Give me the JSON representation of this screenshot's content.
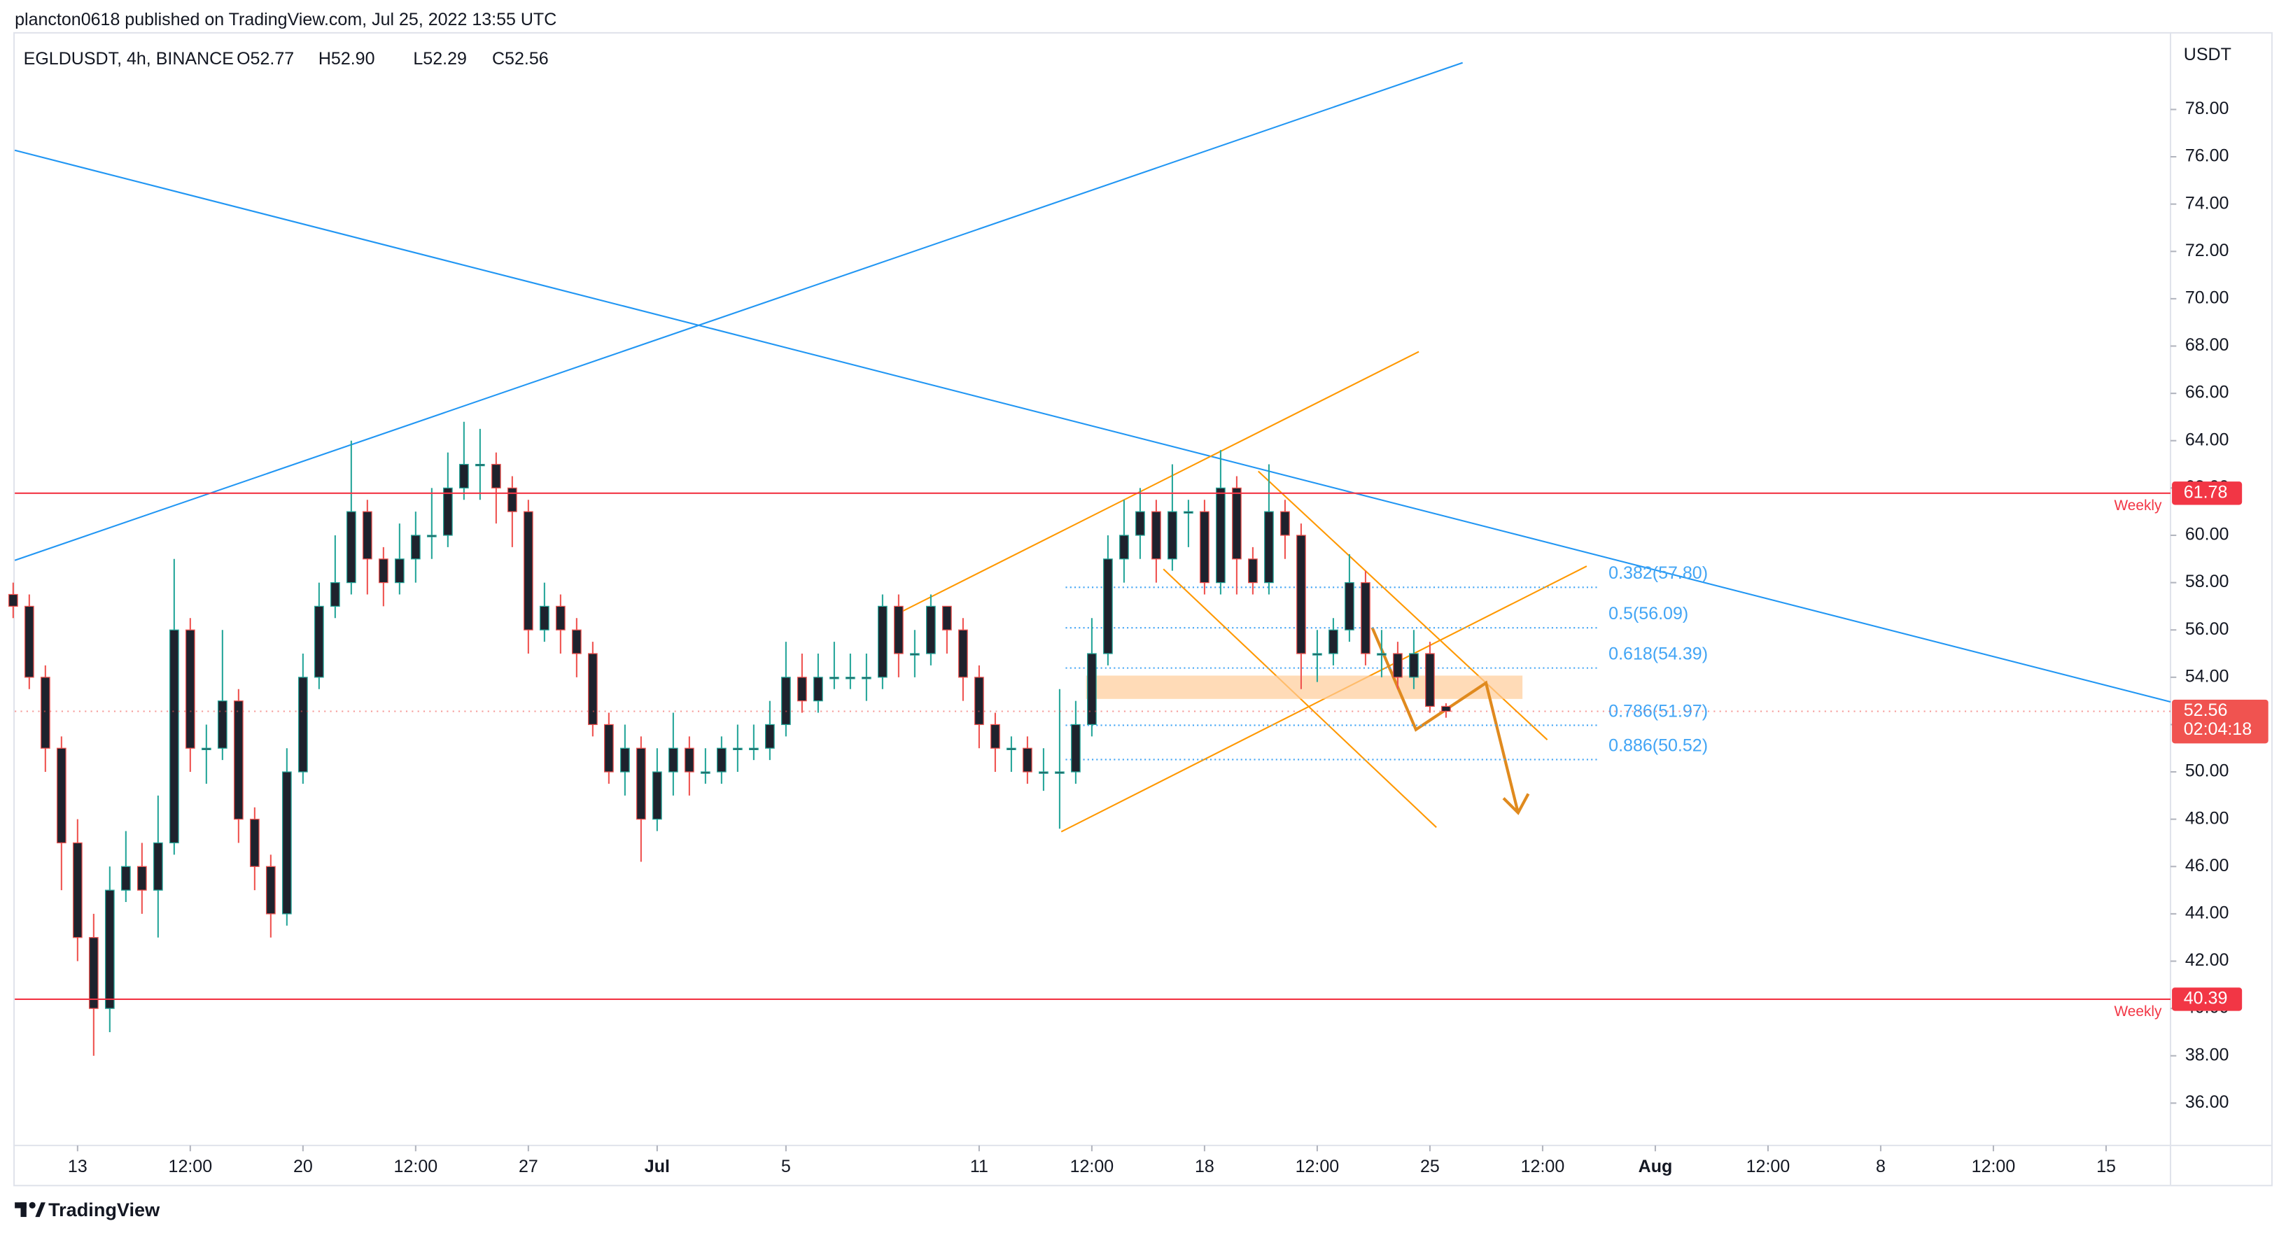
{
  "header": {
    "publisher": "plancton0618 published on TradingView.com, Jul 25, 2022 13:55 UTC"
  },
  "footer": {
    "brand": "TradingView"
  },
  "chart_data": {
    "type": "candlestick",
    "title": "EGLDUSDT, 4h, BINANCE",
    "ohlc_legend": [
      "O52.77",
      "H52.90",
      "L52.29",
      "C52.56"
    ],
    "y_axis_label": "USDT",
    "x": [
      11,
      11.5,
      12,
      12.5,
      13,
      13.5,
      14,
      14.5,
      15,
      15.5,
      16,
      16.5,
      17,
      17.5,
      18,
      18.5,
      19,
      19.5,
      20,
      20.5,
      21,
      21.5,
      22,
      22.5,
      23,
      23.5,
      24,
      24.5,
      25,
      25.5,
      26,
      26.5,
      27,
      27.5,
      28,
      28.5,
      29,
      29.5,
      30,
      30.5,
      31,
      31.5,
      32,
      32.5,
      33,
      33.5,
      34,
      34.5,
      35,
      35.5,
      36,
      36.5,
      37,
      37.5,
      38,
      38.5,
      39,
      39.5,
      40,
      40.5,
      41,
      41.5,
      42,
      42.5,
      43,
      43.5,
      44,
      44.5,
      45,
      45.5,
      46,
      46.5,
      47,
      47.5,
      48,
      48.5,
      49,
      49.5,
      50,
      50.5,
      51,
      51.5,
      52,
      52.5,
      53,
      53.5,
      54,
      54.5,
      55,
      55.5
    ],
    "open": [
      57.5,
      57,
      54,
      51,
      47,
      43,
      40,
      45,
      46,
      45,
      47,
      56,
      51,
      51,
      53,
      48,
      46,
      44,
      50,
      54,
      57,
      58,
      61,
      59,
      58,
      59,
      60,
      60,
      62,
      63,
      63,
      62,
      61,
      56,
      57,
      56,
      55,
      52,
      50,
      51,
      48,
      50,
      51,
      50,
      50,
      51,
      51,
      51,
      52,
      54,
      53,
      54,
      54,
      54,
      54,
      57,
      55,
      55,
      57,
      56,
      54,
      52,
      51,
      51,
      50,
      50,
      50,
      52,
      55,
      59,
      60,
      61,
      59,
      61,
      61,
      58,
      62,
      59,
      58,
      61,
      60,
      55,
      55,
      56,
      58,
      55,
      55,
      54,
      55,
      52.77
    ],
    "high": [
      58,
      57.5,
      54.5,
      51.5,
      48,
      44,
      46,
      47.5,
      47,
      49,
      59,
      56.5,
      52,
      56,
      53.5,
      48.5,
      46.5,
      51,
      55,
      58,
      60,
      64,
      61.5,
      59.5,
      60.5,
      61,
      62,
      63.5,
      64.8,
      64.5,
      63.5,
      62.5,
      61.5,
      58,
      57.5,
      56.5,
      55.5,
      52.5,
      52,
      51.5,
      51,
      52.5,
      51.5,
      51,
      51.5,
      52,
      52,
      53,
      55.5,
      55,
      55,
      55.5,
      55,
      55,
      57.5,
      57.5,
      56,
      57.5,
      57,
      56.5,
      54.5,
      52.5,
      51.5,
      51.5,
      51,
      53.5,
      53,
      56.5,
      60,
      61.5,
      62,
      61.5,
      63,
      61.5,
      61.5,
      63.6,
      62.5,
      59.5,
      63,
      61.5,
      60.5,
      56,
      56.5,
      59.2,
      58.5,
      56,
      55.5,
      56,
      55.5,
      52.9
    ],
    "low": [
      56.5,
      53.5,
      50,
      45,
      42,
      38,
      39,
      44.5,
      44,
      43,
      46.5,
      50,
      49.5,
      50.5,
      47,
      45,
      43,
      43.5,
      49.5,
      53.5,
      56.5,
      57.5,
      57.5,
      57,
      57.5,
      58,
      59,
      59.5,
      61.5,
      61.5,
      60.5,
      59.5,
      55,
      55.5,
      55,
      54,
      51.5,
      49.5,
      49,
      46.2,
      47.5,
      49,
      49,
      49.5,
      49.5,
      50,
      50.5,
      50.5,
      51.5,
      52.5,
      52.5,
      53.5,
      53.5,
      53,
      53.5,
      54,
      54,
      54.5,
      55,
      53,
      51,
      50,
      50,
      49.5,
      49.2,
      47.6,
      49.5,
      51.5,
      54.5,
      58,
      59,
      58,
      58.5,
      59.5,
      57.5,
      57.5,
      57.5,
      57.5,
      57.5,
      59,
      53.5,
      53.8,
      54.5,
      55.5,
      54.5,
      54,
      53.5,
      53.5,
      52.5,
      52.29
    ],
    "close": [
      57,
      54,
      51,
      47,
      43,
      40,
      45,
      46,
      45,
      47,
      56,
      51,
      51,
      53,
      48,
      46,
      44,
      50,
      54,
      57,
      58,
      61,
      59,
      58,
      59,
      60,
      60,
      62,
      63,
      63,
      62,
      61,
      56,
      57,
      56,
      55,
      52,
      50,
      51,
      48,
      50,
      51,
      50,
      50,
      51,
      51,
      51,
      52,
      54,
      53,
      54,
      54,
      54,
      54,
      57,
      55,
      55,
      57,
      56,
      54,
      52,
      51,
      51,
      50,
      50,
      50,
      52,
      55,
      59,
      60,
      61,
      59,
      61,
      61,
      58,
      62,
      59,
      58,
      61,
      60,
      55,
      55,
      56,
      58,
      55,
      55,
      54,
      55,
      52.77,
      52.56
    ],
    "up_color": "#26a69a",
    "down_color": "#ef5350",
    "body_color": "#1e222d",
    "xlim": [
      11.05,
      78.0
    ],
    "xticks": [
      13,
      {
        "value": 16.5,
        "label": "12:00"
      },
      20,
      {
        "value": 23.5,
        "label": "12:00"
      },
      27,
      {
        "value": 31,
        "label": "Jul"
      },
      {
        "value": 35,
        "label": "5"
      },
      {
        "value": 41,
        "label": "11"
      },
      {
        "value": 44.5,
        "label": "12:00"
      },
      {
        "value": 48,
        "label": "18"
      },
      {
        "value": 51.5,
        "label": "12:00"
      },
      {
        "value": 55,
        "label": "25"
      },
      {
        "value": 58.5,
        "label": "12:00"
      },
      {
        "value": 62,
        "label": "Aug"
      },
      {
        "value": 65.5,
        "label": "12:00"
      },
      {
        "value": 69,
        "label": "8"
      },
      {
        "value": 72.5,
        "label": "12:00"
      },
      {
        "value": 76,
        "label": "15"
      }
    ],
    "ylim": [
      34.21,
      81.27
    ],
    "yticks": [
      {
        "value": 36,
        "label": "36.00"
      },
      {
        "value": 38,
        "label": "38.00"
      },
      {
        "value": 40,
        "label": "40.00"
      },
      {
        "value": 42,
        "label": "42.00"
      },
      {
        "value": 44,
        "label": "44.00"
      },
      {
        "value": 46,
        "label": "46.00"
      },
      {
        "value": 48,
        "label": "48.00"
      },
      {
        "value": 50,
        "label": "50.00"
      },
      {
        "value": 52,
        "label": "52.00"
      },
      {
        "value": 54,
        "label": "54.00"
      },
      {
        "value": 56,
        "label": "56.00"
      },
      {
        "value": 58,
        "label": "58.00"
      },
      {
        "value": 60,
        "label": "60.00"
      },
      {
        "value": 62,
        "label": "62.00"
      },
      {
        "value": 64,
        "label": "64.00"
      },
      {
        "value": 66,
        "label": "66.00"
      },
      {
        "value": 68,
        "label": "68.00"
      },
      {
        "value": 70,
        "label": "70.00"
      },
      {
        "value": 72,
        "label": "72.00"
      },
      {
        "value": 74,
        "label": "74.00"
      },
      {
        "value": 76,
        "label": "76.00"
      },
      {
        "value": 78,
        "label": "78.00"
      }
    ],
    "horizontal_lines": [
      {
        "value": 61.78,
        "label": "Weekly",
        "color": "#f23645"
      },
      {
        "value": 40.39,
        "label": "Weekly",
        "color": "#f23645"
      }
    ],
    "last_price": {
      "value": 52.56,
      "countdown": "02:04:18",
      "color": "#f05350"
    },
    "fib_color": "#42a5f5",
    "fib_levels": [
      {
        "value": 57.8,
        "label": "0.382(57.80)"
      },
      {
        "value": 56.09,
        "label": "0.5(56.09)"
      },
      {
        "value": 54.39,
        "label": "0.618(54.39)"
      },
      {
        "value": 51.97,
        "label": "0.786(51.97)"
      },
      {
        "value": 50.52,
        "label": "0.886(50.52)"
      }
    ]
  }
}
